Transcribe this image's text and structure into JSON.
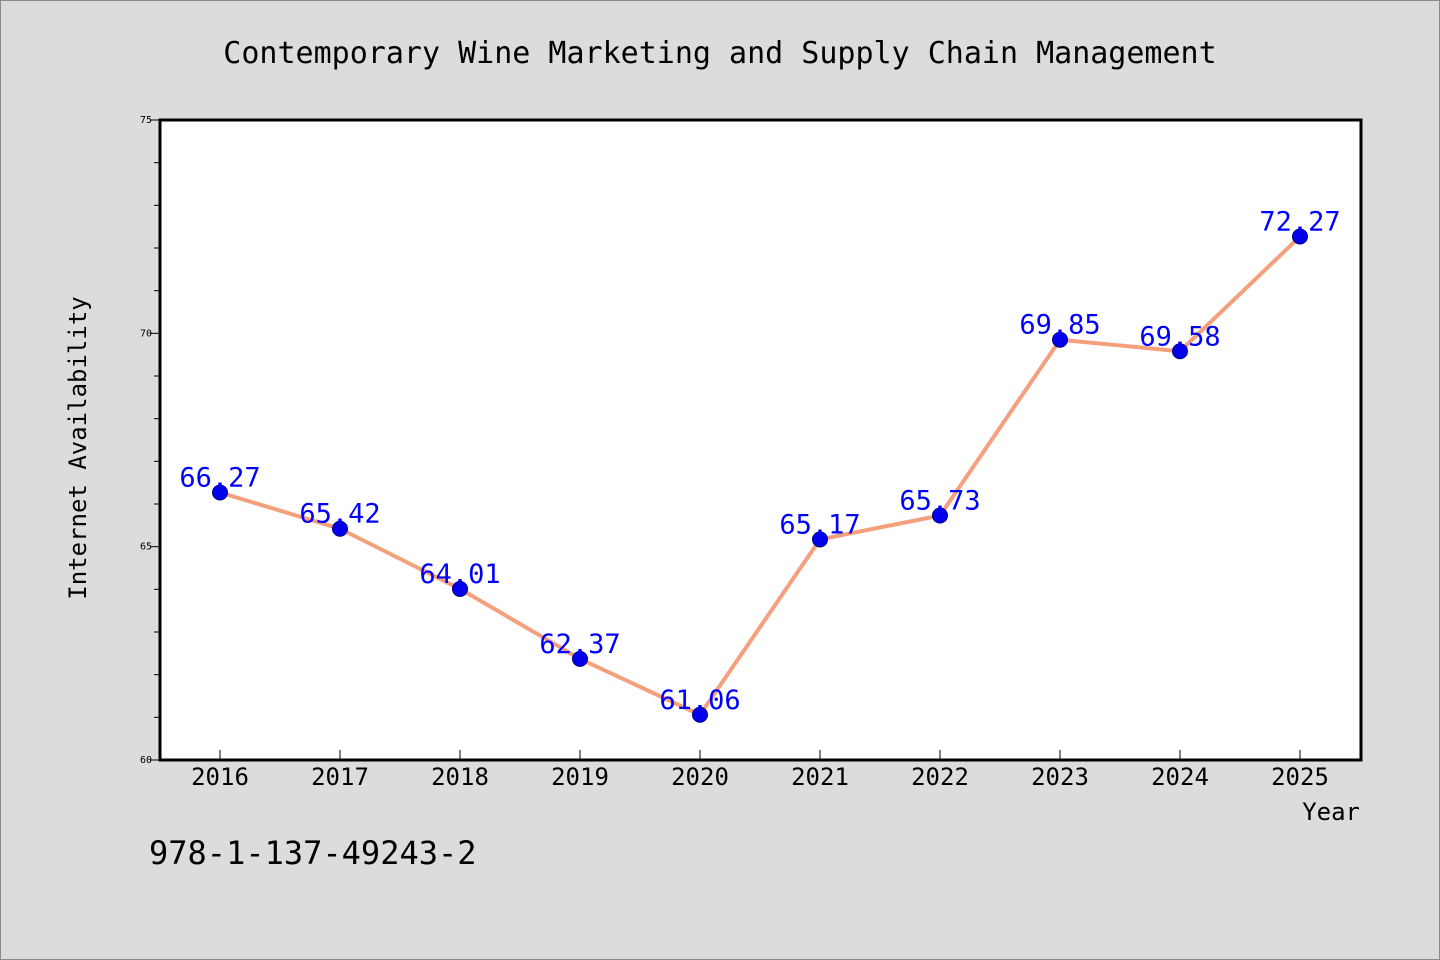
{
  "chart_data": {
    "type": "line",
    "title": "Contemporary Wine Marketing and Supply Chain Management",
    "xlabel": "Year",
    "ylabel": "Internet Availability",
    "categories": [
      "2016",
      "2017",
      "2018",
      "2019",
      "2020",
      "2021",
      "2022",
      "2023",
      "2024",
      "2025"
    ],
    "series": [
      {
        "values": [
          66.27,
          65.42,
          64.01,
          62.37,
          61.06,
          65.17,
          65.73,
          69.85,
          69.58,
          72.27
        ],
        "data_labels": [
          "66.27",
          "65.42",
          "64.01",
          "62.37",
          "61.06",
          "65.17",
          "65.73",
          "69.85",
          "69.58",
          "72.27"
        ]
      }
    ],
    "ylim": [
      60,
      75
    ],
    "yticks_major": [
      "60",
      "65",
      "70",
      "75"
    ],
    "yminor_step": 1,
    "grid": false,
    "legend": "none",
    "colors": {
      "line": "#f4a07d",
      "marker": "#0000ee",
      "marker_edge": "#000080",
      "data_label": "#0000ff",
      "background": "#dcdcdc",
      "plot_area": "#ffffff",
      "axes": "#000000"
    }
  },
  "isbn": "978-1-137-49243-2"
}
